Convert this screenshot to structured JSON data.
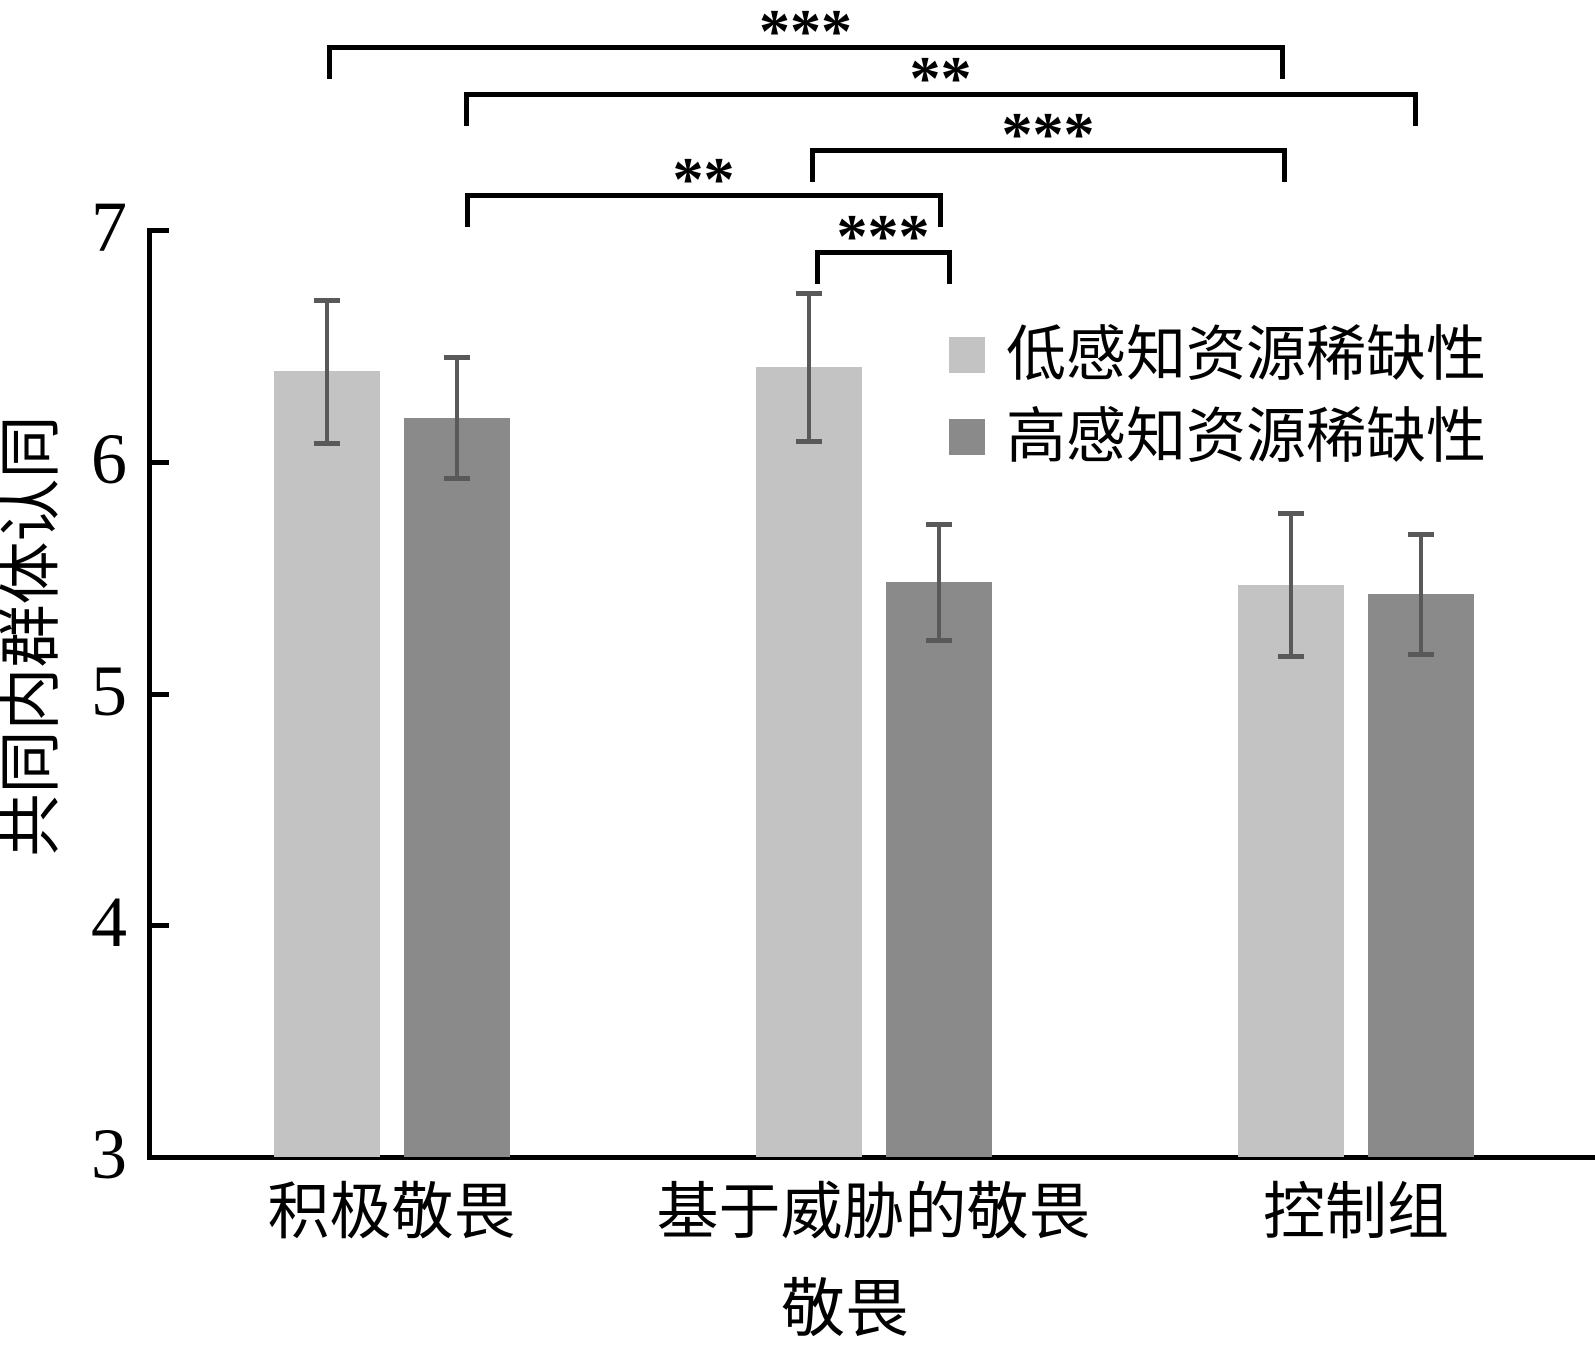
{
  "chart_data": {
    "type": "bar",
    "title": "",
    "xlabel": "敬畏",
    "ylabel": "共同内群体认同",
    "ylim": [
      3,
      7
    ],
    "yticks": [
      3,
      4,
      5,
      6,
      7
    ],
    "grid": false,
    "legend_position": "upper-right-inside",
    "categories": [
      "积极敬畏",
      "基于威胁的敬畏",
      "控制组"
    ],
    "series": [
      {
        "name": "低感知资源稀缺性",
        "color": "#c3c3c3",
        "values": [
          6.39,
          6.41,
          5.47
        ],
        "errors": [
          0.31,
          0.32,
          0.31
        ]
      },
      {
        "name": "高感知资源稀缺性",
        "color": "#8a8a8a",
        "values": [
          6.19,
          5.48,
          5.43
        ],
        "errors": [
          0.26,
          0.25,
          0.26
        ]
      }
    ],
    "error_bar_color": "#595959",
    "axis_color": "#000000",
    "significance_brackets": [
      {
        "from": {
          "category": 0,
          "series": 0
        },
        "to": {
          "category": 2,
          "series": 0
        },
        "label": "***"
      },
      {
        "from": {
          "category": 0,
          "series": 1
        },
        "to": {
          "category": 2,
          "series": 1
        },
        "label": "**"
      },
      {
        "from": {
          "category": 1,
          "series": 0
        },
        "to": {
          "category": 2,
          "series": 0
        },
        "label": "***"
      },
      {
        "from": {
          "category": 0,
          "series": 1
        },
        "to": {
          "category": 1,
          "series": 1
        },
        "label": "**"
      },
      {
        "from": {
          "category": 1,
          "series": 0
        },
        "to": {
          "category": 1,
          "series": 1
        },
        "label": "***"
      }
    ]
  }
}
